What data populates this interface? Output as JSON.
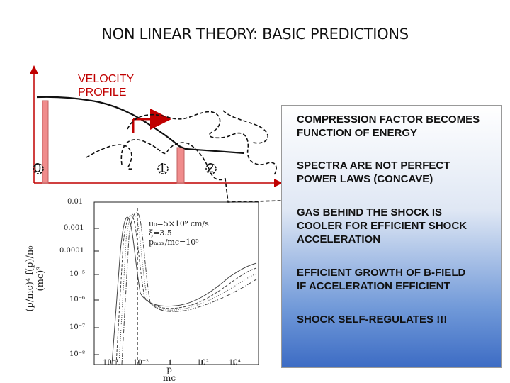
{
  "title": "NON LINEAR THEORY: BASIC PREDICTIONS",
  "velocity_label_line1": "VELOCITY",
  "velocity_label_line2": "PROFILE",
  "regions": [
    "0",
    "1",
    "2"
  ],
  "points": [
    {
      "line1": "COMPRESSION FACTOR BECOMES",
      "line2": "FUNCTION OF ENERGY"
    },
    {
      "line1": "SPECTRA ARE NOT PERFECT",
      "line2": "POWER LAWS (CONCAVE)"
    },
    {
      "line1": "GAS BEHIND THE SHOCK IS",
      "line2": "COOLER FOR EFFICIENT SHOCK",
      "line3": "ACCELERATION"
    },
    {
      "line1": "EFFICIENT GROWTH OF B-FIELD",
      "line2": "IF ACCELERATION EFFICIENT"
    },
    {
      "line1": "SHOCK SELF-REGULATES !!!"
    }
  ],
  "plot": {
    "y_ticks": [
      "0.01",
      "0.001",
      "0.0001",
      "10⁻⁵",
      "10⁻⁶",
      "10⁻⁷",
      "10⁻⁸"
    ],
    "x_ticks": [
      "10⁻⁴",
      "10⁻²",
      "1",
      "10²",
      "10⁴"
    ],
    "y_label": "(p/mc)⁴ f(p)/n₀ (mc)³",
    "x_label_num": "p",
    "x_label_den": "mc",
    "annotation_line1": "u₀=5×10⁹ cm/s",
    "annotation_line2": "ξ=3.5",
    "annotation_line3": "pₘₐₓ/mc=10⁵"
  },
  "colors": {
    "accent": "#c00000",
    "shock_fill": "#f08c8c",
    "panel_bottom": "#3d6cc4"
  }
}
